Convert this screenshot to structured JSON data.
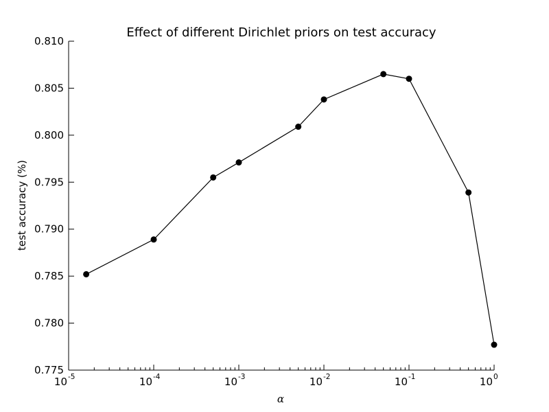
{
  "chart_data": {
    "type": "line",
    "title": "Effect of different Dirichlet priors on test accuracy",
    "xlabel": "α",
    "ylabel": "test accuracy (%)",
    "xscale": "log",
    "xlim": [
      1e-05,
      1
    ],
    "ylim": [
      0.775,
      0.81
    ],
    "x_ticks": [
      {
        "value": 1e-05,
        "base": "10",
        "exp": "-5"
      },
      {
        "value": 0.0001,
        "base": "10",
        "exp": "-4"
      },
      {
        "value": 0.001,
        "base": "10",
        "exp": "-3"
      },
      {
        "value": 0.01,
        "base": "10",
        "exp": "-2"
      },
      {
        "value": 0.1,
        "base": "10",
        "exp": "-1"
      },
      {
        "value": 1,
        "base": "10",
        "exp": "0"
      }
    ],
    "y_ticks": [
      {
        "value": 0.775,
        "label": "0.775"
      },
      {
        "value": 0.78,
        "label": "0.780"
      },
      {
        "value": 0.785,
        "label": "0.785"
      },
      {
        "value": 0.79,
        "label": "0.790"
      },
      {
        "value": 0.795,
        "label": "0.795"
      },
      {
        "value": 0.8,
        "label": "0.800"
      },
      {
        "value": 0.805,
        "label": "0.805"
      },
      {
        "value": 0.81,
        "label": "0.810"
      }
    ],
    "grid": false,
    "series": [
      {
        "color": "#000000",
        "marker": "circle",
        "x": [
          1.609e-05,
          0.0001,
          0.0005,
          0.001,
          0.005,
          0.01,
          0.05,
          0.1,
          0.5,
          1
        ],
        "y": [
          0.7852,
          0.7889,
          0.7955,
          0.7971,
          0.8009,
          0.8038,
          0.8065,
          0.806,
          0.7939,
          0.7777
        ]
      }
    ]
  }
}
